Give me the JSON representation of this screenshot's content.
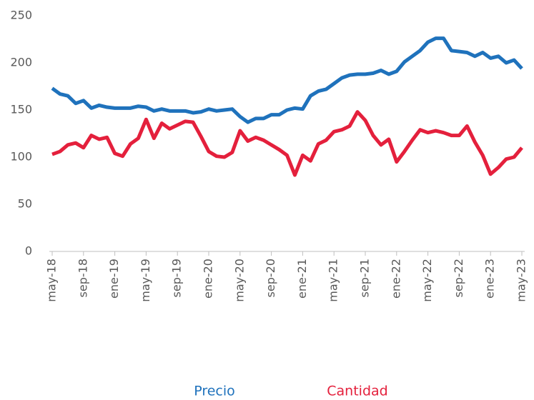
{
  "chart_data": {
    "type": "line",
    "categories": [
      "may-18",
      null,
      null,
      null,
      "sep-18",
      null,
      null,
      null,
      "ene-19",
      null,
      null,
      null,
      "may-19",
      null,
      null,
      null,
      "sep-19",
      null,
      null,
      null,
      "ene-20",
      null,
      null,
      null,
      "may-20",
      null,
      null,
      null,
      "sep-20",
      null,
      null,
      null,
      "ene-21",
      null,
      null,
      null,
      "may-21",
      null,
      null,
      null,
      "sep-21",
      null,
      null,
      null,
      "ene-22",
      null,
      null,
      null,
      "may-22",
      null,
      null,
      null,
      "sep-22",
      null,
      null,
      null,
      "ene-23",
      null,
      null,
      null,
      "may-23"
    ],
    "series": [
      {
        "name": "Precio",
        "color": "#1f72bc",
        "values": [
          173,
          167,
          165,
          157,
          160,
          152,
          155,
          153,
          152,
          152,
          152,
          154,
          153,
          149,
          151,
          149,
          149,
          149,
          147,
          148,
          151,
          149,
          150,
          151,
          143,
          137,
          141,
          141,
          145,
          145,
          150,
          152,
          151,
          165,
          170,
          172,
          178,
          184,
          187,
          188,
          188,
          189,
          192,
          188,
          191,
          201,
          207,
          213,
          222,
          226,
          226,
          213,
          212,
          211,
          207,
          211,
          205,
          207,
          200,
          203,
          194
        ]
      },
      {
        "name": "Cantidad",
        "color": "#e4203c",
        "values": [
          103,
          106,
          113,
          115,
          110,
          123,
          119,
          121,
          104,
          101,
          114,
          120,
          140,
          120,
          136,
          130,
          134,
          138,
          137,
          122,
          106,
          101,
          100,
          105,
          128,
          117,
          121,
          118,
          113,
          108,
          102,
          81,
          102,
          96,
          114,
          118,
          127,
          129,
          133,
          148,
          139,
          123,
          113,
          119,
          95,
          106,
          118,
          129,
          126,
          128,
          126,
          123,
          123,
          133,
          116,
          102,
          82,
          89,
          98,
          100,
          110
        ]
      }
    ],
    "ylim": [
      0,
      250
    ],
    "yticks": [
      0,
      50,
      100,
      150,
      200,
      250
    ],
    "grid": false,
    "legend": "bottom"
  }
}
